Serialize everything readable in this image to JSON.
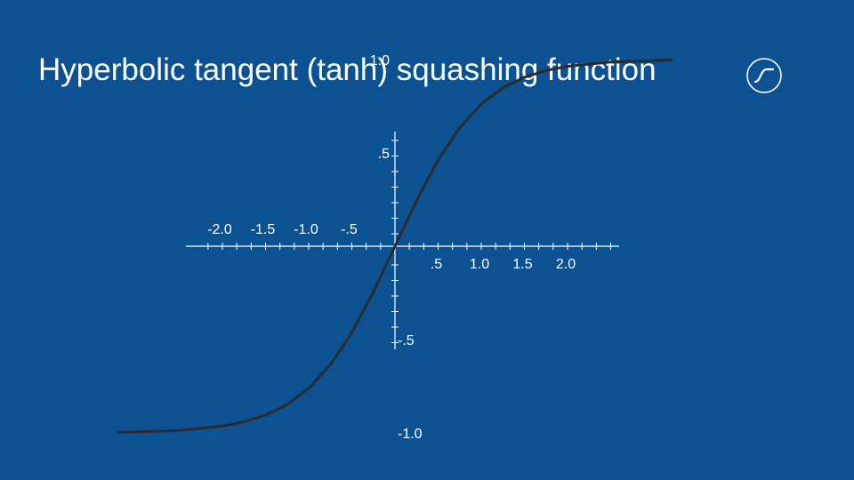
{
  "slide": {
    "title": "Hyperbolic tangent (tanh) squashing function",
    "logo_icon": "tanh-curve-icon"
  },
  "colors": {
    "background": "#0c5293",
    "text": "#ffffff",
    "axis": "#ffffff",
    "curve": "#2b2b2b"
  },
  "chart_data": {
    "type": "line",
    "title": "",
    "xlabel": "",
    "ylabel": "",
    "xlim": [
      -3.2,
      2.6
    ],
    "ylim": [
      -1.15,
      1.25
    ],
    "function": "tanh",
    "x_ticks": [
      {
        "value": -2.0,
        "label": "-2.0"
      },
      {
        "value": -1.5,
        "label": "-1.5"
      },
      {
        "value": -1.0,
        "label": "-1.0"
      },
      {
        "value": -0.5,
        "label": "-.5"
      },
      {
        "value": 0.5,
        "label": ".5"
      },
      {
        "value": 1.0,
        "label": "1.0"
      },
      {
        "value": 1.5,
        "label": "1.5"
      },
      {
        "value": 2.0,
        "label": "2.0"
      }
    ],
    "y_ticks": [
      {
        "value": 1.0,
        "label": "1.0"
      },
      {
        "value": 0.5,
        "label": ".5"
      },
      {
        "value": -0.5,
        "label": "-.5"
      },
      {
        "value": -1.0,
        "label": "-1.0"
      }
    ],
    "x": [
      -3.2,
      -3.0,
      -2.5,
      -2.0,
      -1.75,
      -1.5,
      -1.25,
      -1.0,
      -0.75,
      -0.5,
      -0.25,
      0.0,
      0.25,
      0.5,
      0.75,
      1.0,
      1.25,
      1.5,
      1.75,
      2.0,
      2.5,
      3.2
    ],
    "y": [
      -0.997,
      -0.995,
      -0.987,
      -0.964,
      -0.941,
      -0.905,
      -0.848,
      -0.762,
      -0.635,
      -0.462,
      -0.245,
      0.0,
      0.245,
      0.462,
      0.635,
      0.762,
      0.848,
      0.905,
      0.941,
      0.964,
      0.987,
      0.997
    ],
    "grid": false,
    "legend": "none"
  }
}
